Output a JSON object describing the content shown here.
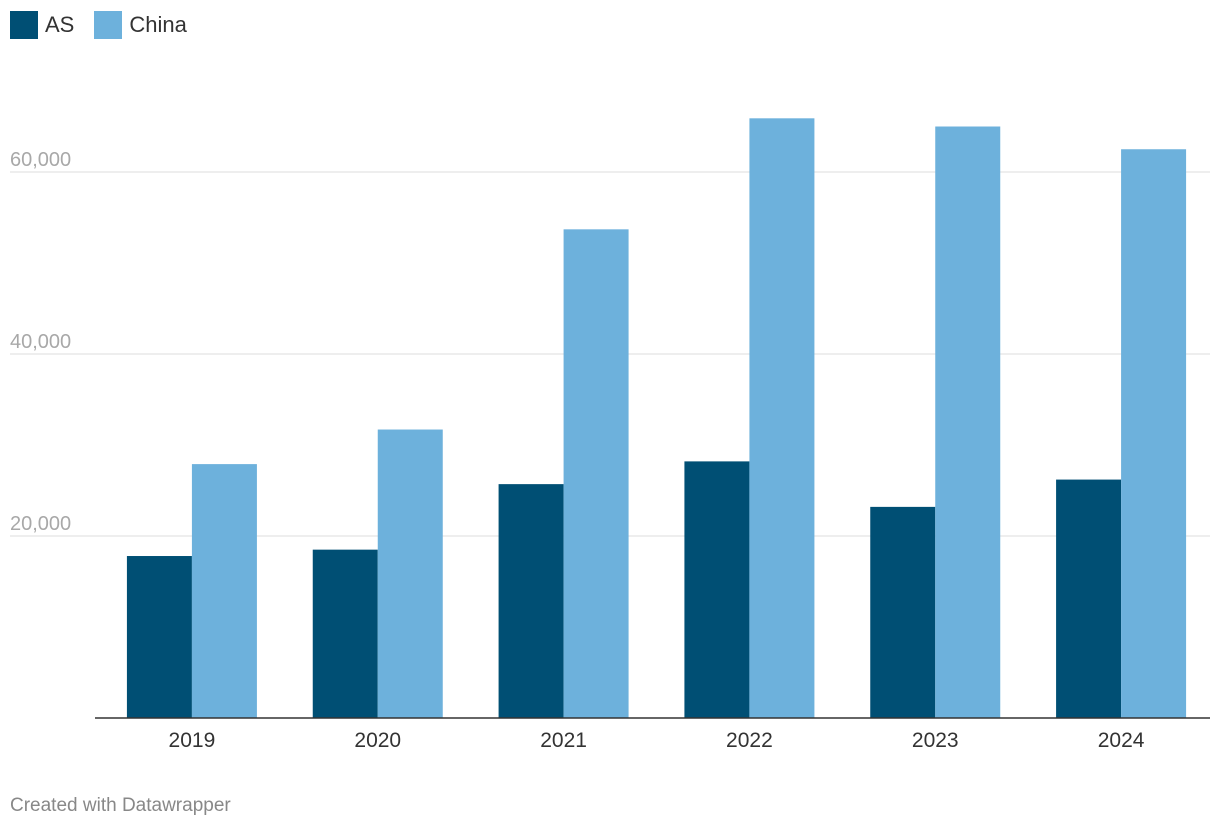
{
  "chart_data": {
    "type": "bar",
    "categories": [
      "2019",
      "2020",
      "2021",
      "2022",
      "2023",
      "2024"
    ],
    "series": [
      {
        "name": "AS",
        "color": "#004f74",
        "values": [
          17800,
          18500,
          25700,
          28200,
          23200,
          26200
        ]
      },
      {
        "name": "China",
        "color": "#6db1dc",
        "values": [
          27900,
          31700,
          53700,
          65900,
          65000,
          62500
        ]
      }
    ],
    "yticks": [
      20000,
      40000,
      60000
    ],
    "ytick_labels": [
      "20,000",
      "40,000",
      "60,000"
    ],
    "ylim": [
      0,
      70000
    ],
    "grid": true,
    "legend_position": "top-left",
    "title": "",
    "xlabel": "",
    "ylabel": ""
  },
  "footer": {
    "credit": "Created with Datawrapper"
  }
}
